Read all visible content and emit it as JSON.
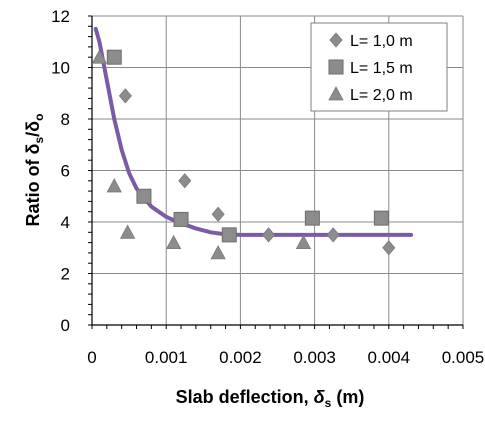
{
  "chart_data": {
    "type": "scatter",
    "xlabel": "Slab deflection, δs (m)",
    "ylabel": "Ratio of δs/δo",
    "xlim": [
      0,
      0.005
    ],
    "ylim": [
      0,
      12
    ],
    "x_ticks": [
      0,
      0.001,
      0.002,
      0.003,
      0.004,
      0.005
    ],
    "x_tick_labels": [
      "0",
      "0.001",
      "0.002",
      "0.003",
      "0.004",
      "0.005"
    ],
    "y_ticks": [
      0,
      2,
      4,
      6,
      8,
      10,
      12
    ],
    "y_tick_labels": [
      "0",
      "2",
      "4",
      "6",
      "8",
      "10",
      "12"
    ],
    "grid": true,
    "legend_position": "top-right",
    "series": [
      {
        "name": "L= 1,0 m",
        "marker": "diamond",
        "color": "#8c8c8c",
        "points": [
          {
            "x": 0.00045,
            "y": 8.9
          },
          {
            "x": 0.00125,
            "y": 5.6
          },
          {
            "x": 0.0017,
            "y": 4.3
          },
          {
            "x": 0.00238,
            "y": 3.5
          },
          {
            "x": 0.00325,
            "y": 3.5
          },
          {
            "x": 0.004,
            "y": 3.0
          }
        ]
      },
      {
        "name": "L= 1,5 m",
        "marker": "square",
        "color": "#8c8c8c",
        "points": [
          {
            "x": 0.0003,
            "y": 10.4
          },
          {
            "x": 0.0007,
            "y": 5.0
          },
          {
            "x": 0.0012,
            "y": 4.1
          },
          {
            "x": 0.00185,
            "y": 3.5
          },
          {
            "x": 0.00297,
            "y": 4.15
          },
          {
            "x": 0.0039,
            "y": 4.15
          }
        ]
      },
      {
        "name": "L= 2,0 m",
        "marker": "triangle",
        "color": "#8c8c8c",
        "points": [
          {
            "x": 0.0001,
            "y": 10.4
          },
          {
            "x": 0.0003,
            "y": 5.4
          },
          {
            "x": 0.00048,
            "y": 3.6
          },
          {
            "x": 0.0011,
            "y": 3.2
          },
          {
            "x": 0.0017,
            "y": 2.8
          },
          {
            "x": 0.00285,
            "y": 3.2
          }
        ]
      }
    ],
    "fit_curve": {
      "color": "#7b5aa6",
      "points": [
        {
          "x": 5e-05,
          "y": 11.5
        },
        {
          "x": 0.0001,
          "y": 11.0
        },
        {
          "x": 0.0002,
          "y": 9.5
        },
        {
          "x": 0.0003,
          "y": 8.0
        },
        {
          "x": 0.0004,
          "y": 6.8
        },
        {
          "x": 0.0005,
          "y": 5.9
        },
        {
          "x": 0.0006,
          "y": 5.3
        },
        {
          "x": 0.0008,
          "y": 4.6
        },
        {
          "x": 0.001,
          "y": 4.2
        },
        {
          "x": 0.0012,
          "y": 3.95
        },
        {
          "x": 0.0014,
          "y": 3.75
        },
        {
          "x": 0.0016,
          "y": 3.6
        },
        {
          "x": 0.0018,
          "y": 3.52
        },
        {
          "x": 0.002,
          "y": 3.5
        },
        {
          "x": 0.003,
          "y": 3.5
        },
        {
          "x": 0.0043,
          "y": 3.5
        }
      ]
    }
  }
}
